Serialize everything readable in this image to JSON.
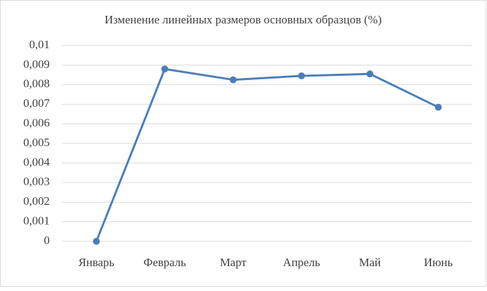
{
  "chart_data": {
    "type": "line",
    "title": "Изменение линейных размеров основных образцов (%)",
    "categories": [
      "Январь",
      "Февраль",
      "Март",
      "Апрель",
      "Май",
      "Июнь"
    ],
    "series": [
      {
        "color": "#4a7ebb",
        "values": [
          0,
          0.0088,
          0.00825,
          0.00845,
          0.00855,
          0.00685
        ]
      }
    ],
    "ylim": [
      0,
      0.01
    ],
    "yticks": [
      0,
      {
        "value": 0.001,
        "label": "0,001"
      },
      {
        "value": 0.002,
        "label": "0,002"
      },
      {
        "value": 0.003,
        "label": "0,003"
      },
      {
        "value": 0.004,
        "label": "0,004"
      },
      {
        "value": 0.005,
        "label": "0,005"
      },
      {
        "value": 0.006,
        "label": "0,006"
      },
      {
        "value": 0.007,
        "label": "0,007"
      },
      {
        "value": 0.008,
        "label": "0,008"
      },
      {
        "value": 0.009,
        "label": "0,009"
      },
      {
        "value": 0.01,
        "label": "0,01"
      }
    ],
    "grid": true
  }
}
